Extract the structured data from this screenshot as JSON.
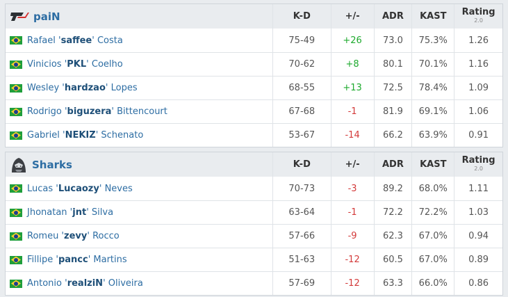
{
  "columns": {
    "kd": "K-D",
    "pm": "+/-",
    "adr": "ADR",
    "kast": "KAST",
    "rating": "Rating",
    "rating_sub": "2.0"
  },
  "teams": [
    {
      "name": "paiN",
      "logo": "pain-logo",
      "players": [
        {
          "first": "Rafael '",
          "nick": "saffee",
          "last": "' Costa",
          "kd": "75-49",
          "pm": "+26",
          "adr": "73.0",
          "kast": "75.3%",
          "rating": "1.26"
        },
        {
          "first": "Vinicios '",
          "nick": "PKL",
          "last": "' Coelho",
          "kd": "70-62",
          "pm": "+8",
          "adr": "80.1",
          "kast": "70.1%",
          "rating": "1.16"
        },
        {
          "first": "Wesley '",
          "nick": "hardzao",
          "last": "' Lopes",
          "kd": "68-55",
          "pm": "+13",
          "adr": "72.5",
          "kast": "78.4%",
          "rating": "1.09"
        },
        {
          "first": "Rodrigo '",
          "nick": "biguzera",
          "last": "' Bittencourt",
          "kd": "67-68",
          "pm": "-1",
          "adr": "81.9",
          "kast": "69.1%",
          "rating": "1.06"
        },
        {
          "first": "Gabriel '",
          "nick": "NEKIZ",
          "last": "' Schenato",
          "kd": "53-67",
          "pm": "-14",
          "adr": "66.2",
          "kast": "63.9%",
          "rating": "0.91"
        }
      ]
    },
    {
      "name": "Sharks",
      "logo": "sharks-logo",
      "players": [
        {
          "first": "Lucas '",
          "nick": "Lucaozy",
          "last": "' Neves",
          "kd": "70-73",
          "pm": "-3",
          "adr": "89.2",
          "kast": "68.0%",
          "rating": "1.11"
        },
        {
          "first": "Jhonatan '",
          "nick": "jnt",
          "last": "' Silva",
          "kd": "63-64",
          "pm": "-1",
          "adr": "72.2",
          "kast": "72.2%",
          "rating": "1.03"
        },
        {
          "first": "Romeu '",
          "nick": "zevy",
          "last": "' Rocco",
          "kd": "57-66",
          "pm": "-9",
          "adr": "62.3",
          "kast": "67.0%",
          "rating": "0.94"
        },
        {
          "first": "Fillipe '",
          "nick": "pancc",
          "last": "' Martins",
          "kd": "51-63",
          "pm": "-12",
          "adr": "60.5",
          "kast": "67.0%",
          "rating": "0.89"
        },
        {
          "first": "Antonio '",
          "nick": "realziN",
          "last": "' Oliveira",
          "kd": "57-69",
          "pm": "-12",
          "adr": "63.3",
          "kast": "66.0%",
          "rating": "0.86"
        }
      ]
    }
  ],
  "colors": {
    "positive": "#1eaa2e",
    "negative": "#d33a3a",
    "link": "#2d6da3"
  },
  "flag_icon": "brazil-flag-icon"
}
